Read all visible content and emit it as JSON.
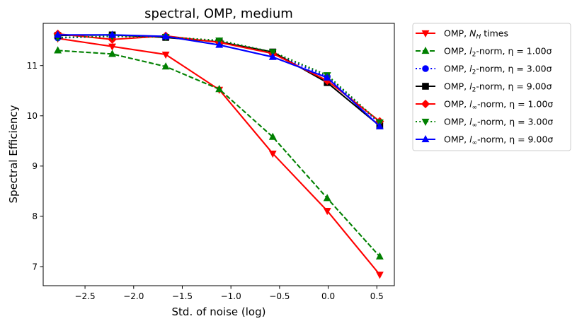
{
  "chart_data": {
    "type": "line",
    "title": "spectral, OMP, medium",
    "xlabel": "Std. of noise (log)",
    "ylabel": "Spectral Efficiency",
    "xlim": [
      -2.93,
      0.68
    ],
    "ylim": [
      6.62,
      11.84
    ],
    "xticks": [
      -2.5,
      -2.0,
      -1.5,
      -1.0,
      -0.5,
      0.0,
      0.5
    ],
    "xtick_labels": [
      "−2.5",
      "−2.0",
      "−1.5",
      "−1.0",
      "−0.5",
      "0.0",
      "0.5"
    ],
    "yticks": [
      7,
      8,
      9,
      10,
      11
    ],
    "ytick_labels": [
      "7",
      "8",
      "9",
      "10",
      "11"
    ],
    "grid": false,
    "legend_placement": "outside-right",
    "x": [
      -2.78,
      -2.22,
      -1.67,
      -1.12,
      -0.57,
      -0.01,
      0.53
    ],
    "series": [
      {
        "name_prefix": "OMP, ",
        "name_math": "N",
        "name_sub": "H",
        "name_suffix": " times",
        "color": "#ff0000",
        "dash": "solid",
        "marker": "triangle-down",
        "values": [
          11.54,
          11.38,
          11.22,
          10.52,
          9.25,
          8.11,
          6.84
        ]
      },
      {
        "name_prefix": "OMP, ",
        "name_math": "l",
        "name_sub": "2",
        "name_suffix": "-norm, η = 1.00σ",
        "color": "#008000",
        "dash": "dashed",
        "marker": "triangle-up",
        "values": [
          11.3,
          11.23,
          10.98,
          10.53,
          9.58,
          8.36,
          7.2
        ]
      },
      {
        "name_prefix": "OMP, ",
        "name_math": "l",
        "name_sub": "2",
        "name_suffix": "-norm, η = 3.00σ",
        "color": "#0000ff",
        "dash": "dotted",
        "marker": "circle",
        "values": [
          11.55,
          11.58,
          11.57,
          11.49,
          11.24,
          10.78,
          9.85
        ]
      },
      {
        "name_prefix": "OMP, ",
        "name_math": "l",
        "name_sub": "2",
        "name_suffix": "-norm, η = 9.00σ",
        "color": "#000000",
        "dash": "solid",
        "marker": "square",
        "values": [
          11.6,
          11.61,
          11.56,
          11.47,
          11.27,
          10.66,
          9.8
        ]
      },
      {
        "name_prefix": "OMP, ",
        "name_math": "l",
        "name_sub": "∞",
        "name_suffix": "-norm, η = 1.00σ",
        "color": "#ff0000",
        "dash": "solid",
        "marker": "diamond",
        "values": [
          11.63,
          11.52,
          11.59,
          11.46,
          11.24,
          10.7,
          9.89
        ]
      },
      {
        "name_prefix": "OMP, ",
        "name_math": "l",
        "name_sub": "∞",
        "name_suffix": "-norm, η = 3.00σ",
        "color": "#008000",
        "dash": "dotted",
        "marker": "triangle-down",
        "values": [
          11.56,
          11.58,
          11.57,
          11.5,
          11.27,
          10.81,
          9.87
        ]
      },
      {
        "name_prefix": "OMP, ",
        "name_math": "l",
        "name_sub": "∞",
        "name_suffix": "-norm, η = 9.00σ",
        "color": "#0000ff",
        "dash": "solid",
        "marker": "triangle-up",
        "values": [
          11.61,
          11.61,
          11.58,
          11.41,
          11.17,
          10.76,
          9.79
        ]
      }
    ]
  }
}
